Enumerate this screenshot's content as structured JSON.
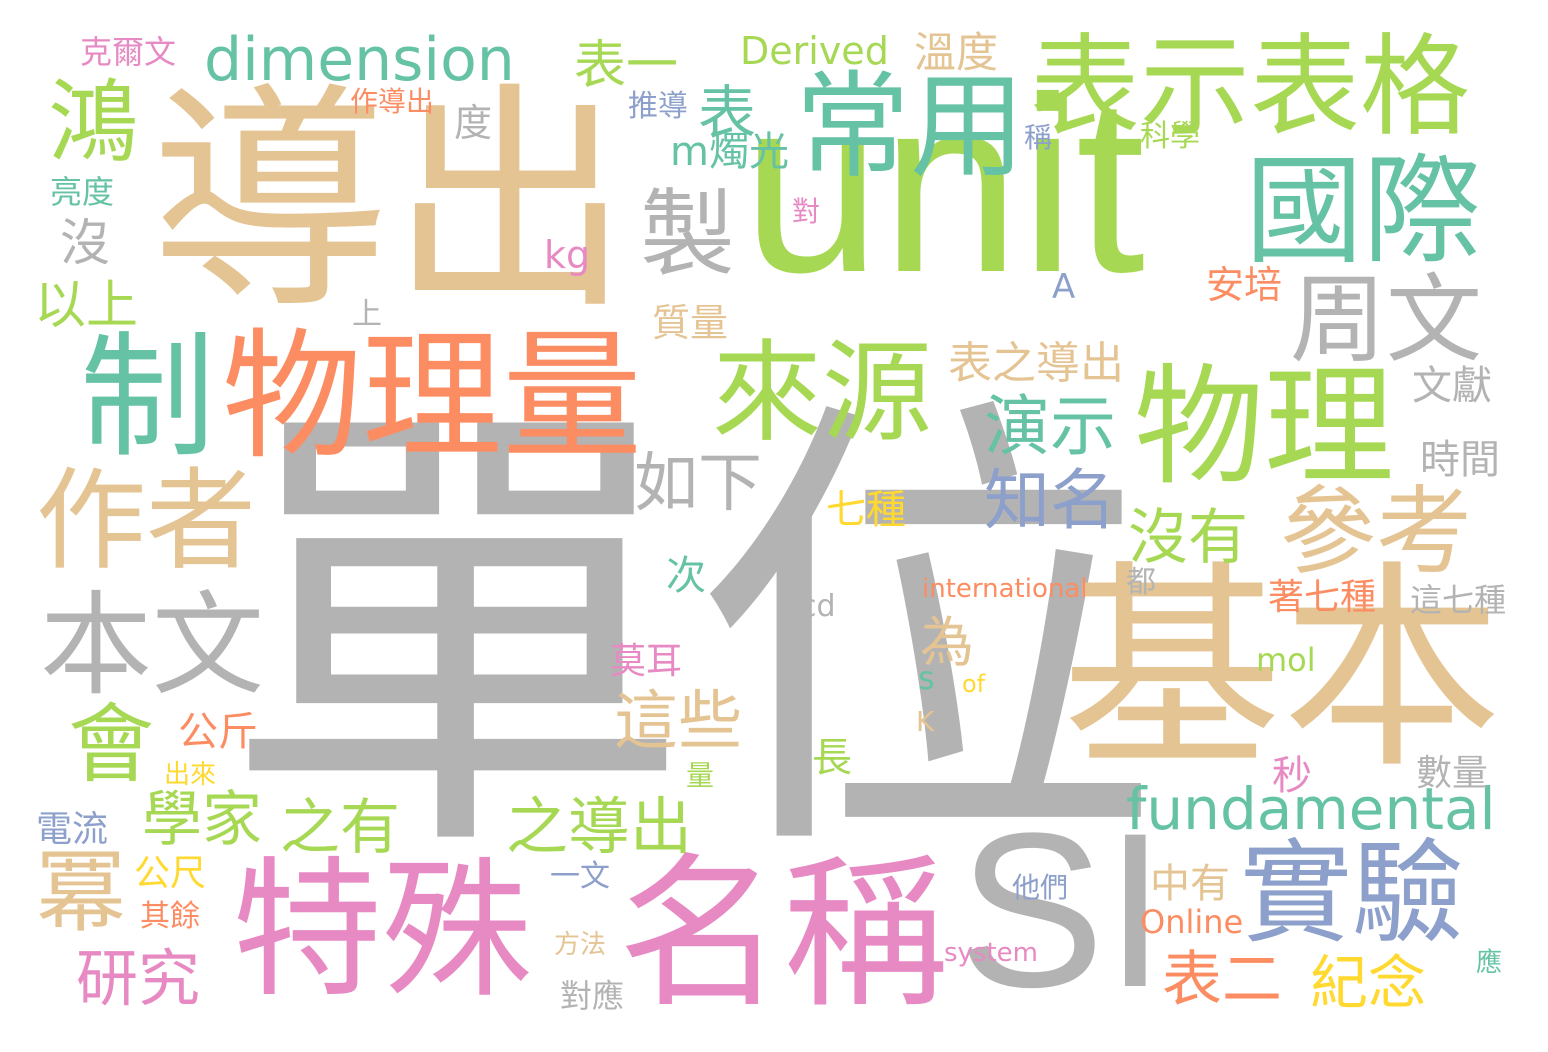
{
  "colors": {
    "gray": "#b3b3b3",
    "tan": "#e5c494",
    "green": "#a6d854",
    "teal": "#66c2a5",
    "orange": "#fc8d62",
    "pink": "#e78ac3",
    "blue": "#8da0cb",
    "yellow": "#ffd92f"
  },
  "words": [
    {
      "id": "w-dan-wei",
      "text": "單位"
    },
    {
      "id": "w-dao-chu",
      "text": "導出"
    },
    {
      "id": "w-unit",
      "text": "unit"
    },
    {
      "id": "w-ji-ben",
      "text": "基本"
    },
    {
      "id": "w-si",
      "text": "SI"
    },
    {
      "id": "w-wu-li-liang",
      "text": "物理量"
    },
    {
      "id": "w-te-shu",
      "text": "特殊"
    },
    {
      "id": "w-ming-cheng",
      "text": "名稱"
    },
    {
      "id": "w-biao-shi-biao-ge",
      "text": "表示表格"
    },
    {
      "id": "w-chang-yong",
      "text": "常用"
    },
    {
      "id": "w-guo-ji",
      "text": "國際"
    },
    {
      "id": "w-wu-li",
      "text": "物理"
    },
    {
      "id": "w-zhi",
      "text": "制"
    },
    {
      "id": "w-lai-yuan",
      "text": "來源"
    },
    {
      "id": "w-zuo-zhe",
      "text": "作者"
    },
    {
      "id": "w-zhou-wen",
      "text": "周文"
    },
    {
      "id": "w-shi-yan",
      "text": "實驗"
    },
    {
      "id": "w-can-kao",
      "text": "參考"
    },
    {
      "id": "w-ben-wen",
      "text": "本文"
    },
    {
      "id": "w-dimension",
      "text": "dimension"
    },
    {
      "id": "w-hong",
      "text": "鴻"
    },
    {
      "id": "w-zhi2",
      "text": "製"
    },
    {
      "id": "w-fundamental",
      "text": "fundamental"
    },
    {
      "id": "w-hui",
      "text": "會"
    },
    {
      "id": "w-mi",
      "text": "冪"
    },
    {
      "id": "w-yan-shi",
      "text": "演示"
    },
    {
      "id": "w-zhi-ming",
      "text": "知名"
    },
    {
      "id": "w-ru-xia",
      "text": "如下"
    },
    {
      "id": "w-mei-you",
      "text": "沒有"
    },
    {
      "id": "w-zhe-xie",
      "text": "這些"
    },
    {
      "id": "w-xue-jia",
      "text": "學家"
    },
    {
      "id": "w-zhi-you",
      "text": "之有"
    },
    {
      "id": "w-zhi-dao-chu",
      "text": "之導出"
    },
    {
      "id": "w-yan-jiu",
      "text": "研究"
    },
    {
      "id": "w-biao-er",
      "text": "表二"
    },
    {
      "id": "w-ji-nian",
      "text": "紀念"
    },
    {
      "id": "w-biao",
      "text": "表"
    },
    {
      "id": "w-biao-yi",
      "text": "表一"
    },
    {
      "id": "w-yi-shang",
      "text": "以上"
    },
    {
      "id": "w-mei",
      "text": "沒"
    },
    {
      "id": "w-wei",
      "text": "為"
    },
    {
      "id": "w-derived",
      "text": "Derived"
    },
    {
      "id": "w-wen-du",
      "text": "溫度"
    },
    {
      "id": "w-biao-zhi-dao-chu",
      "text": "表之導出"
    },
    {
      "id": "w-zhong-you",
      "text": "中有"
    },
    {
      "id": "w-zhu-qi-zhong",
      "text": "著七種"
    },
    {
      "id": "w-online",
      "text": "Online"
    },
    {
      "id": "w-qi-zhong",
      "text": "七種"
    },
    {
      "id": "w-m-zhu-guang",
      "text": "m燭光"
    },
    {
      "id": "w-an-pei",
      "text": "安培"
    },
    {
      "id": "w-wen-xian",
      "text": "文獻"
    },
    {
      "id": "w-shi-jian",
      "text": "時間"
    },
    {
      "id": "w-zhe-qi-zhong",
      "text": "這七種"
    },
    {
      "id": "w-shu-liang",
      "text": "數量"
    },
    {
      "id": "w-zhi-liang",
      "text": "質量"
    },
    {
      "id": "w-mo-er",
      "text": "莫耳"
    },
    {
      "id": "w-gong-jin",
      "text": "公斤"
    },
    {
      "id": "w-chang",
      "text": "長"
    },
    {
      "id": "w-miao",
      "text": "秒"
    },
    {
      "id": "w-ci",
      "text": "次"
    },
    {
      "id": "w-kg",
      "text": "kg"
    },
    {
      "id": "w-mol",
      "text": "mol"
    },
    {
      "id": "w-a",
      "text": "A"
    },
    {
      "id": "w-s",
      "text": "s"
    },
    {
      "id": "w-of",
      "text": "of"
    },
    {
      "id": "w-k",
      "text": "K"
    },
    {
      "id": "w-cd",
      "text": "cd"
    },
    {
      "id": "w-international",
      "text": "international"
    },
    {
      "id": "w-dou",
      "text": "都"
    },
    {
      "id": "w-liang",
      "text": "量"
    },
    {
      "id": "w-dui",
      "text": "對"
    },
    {
      "id": "w-shang",
      "text": "上"
    },
    {
      "id": "w-du",
      "text": "度"
    },
    {
      "id": "w-cheng",
      "text": "稱"
    },
    {
      "id": "w-ke-xue",
      "text": "科學"
    },
    {
      "id": "w-tui-dao",
      "text": "推導"
    },
    {
      "id": "w-ke-er-wen",
      "text": "克爾文"
    },
    {
      "id": "w-zuo-dao-chu",
      "text": "作導出"
    },
    {
      "id": "w-liang-du",
      "text": "亮度"
    },
    {
      "id": "w-chu-lai",
      "text": "出來"
    },
    {
      "id": "w-dian-liu",
      "text": "電流"
    },
    {
      "id": "w-gong-chi",
      "text": "公尺"
    },
    {
      "id": "w-qi-yu",
      "text": "其餘"
    },
    {
      "id": "w-yi-wen",
      "text": "一文"
    },
    {
      "id": "w-fang-fa",
      "text": "方法"
    },
    {
      "id": "w-dui-ying",
      "text": "對應"
    },
    {
      "id": "w-ta-men",
      "text": "他們"
    },
    {
      "id": "w-system",
      "text": "system"
    },
    {
      "id": "w-ying",
      "text": "應"
    }
  ]
}
